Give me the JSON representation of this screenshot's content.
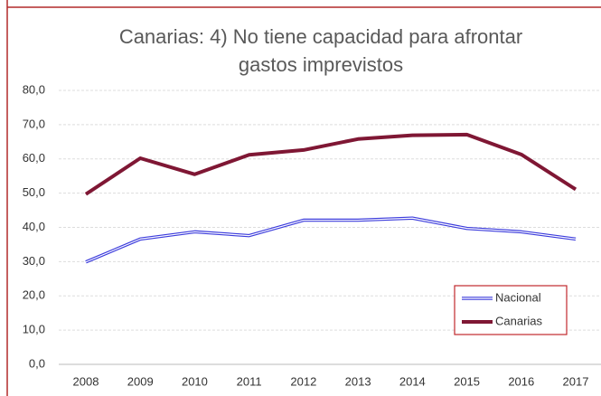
{
  "chart_data": {
    "type": "line",
    "title": "Canarias: 4) No tiene capacidad para afrontar",
    "subtitle": "gastos imprevistos",
    "categories": [
      "2008",
      "2009",
      "2010",
      "2011",
      "2012",
      "2013",
      "2014",
      "2015",
      "2016",
      "2017"
    ],
    "series": [
      {
        "name": "Nacional",
        "color": "#3b3bdc",
        "values": [
          29.9,
          36.6,
          38.7,
          37.6,
          42.1,
          42.1,
          42.7,
          39.7,
          38.7,
          36.6
        ]
      },
      {
        "name": "Canarias",
        "color": "#7f1734",
        "values": [
          49.7,
          60.2,
          55.5,
          61.2,
          62.6,
          65.8,
          66.9,
          67.1,
          61.3,
          51.1
        ]
      }
    ],
    "ylim": [
      0,
      80
    ],
    "yticks": [
      {
        "value": 0,
        "label": "0,0"
      },
      {
        "value": 10,
        "label": "10,0"
      },
      {
        "value": 20,
        "label": "20,0"
      },
      {
        "value": 30,
        "label": "30,0"
      },
      {
        "value": 40,
        "label": "40,0"
      },
      {
        "value": 50,
        "label": "50,0"
      },
      {
        "value": 60,
        "label": "60,0"
      },
      {
        "value": 70,
        "label": "70,0"
      },
      {
        "value": 80,
        "label": "80,0"
      }
    ],
    "grid": true,
    "legend": "lower right"
  }
}
